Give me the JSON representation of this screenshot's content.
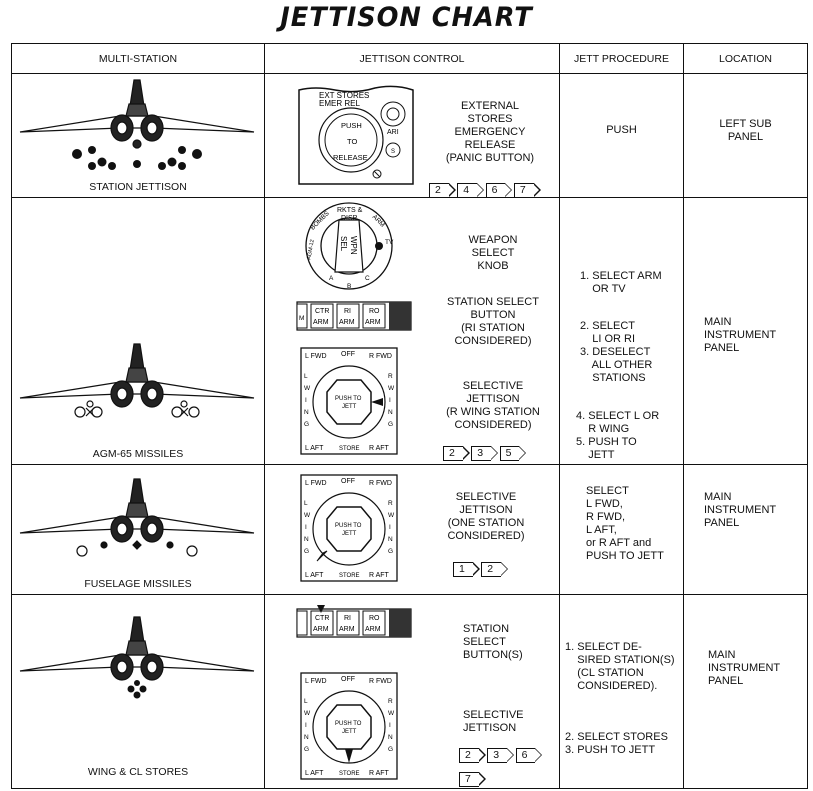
{
  "title": "JETTISON CHART",
  "headers": [
    "MULTI-STATION",
    "JETTISON CONTROL",
    "JETT PROCEDURE",
    "LOCATION"
  ],
  "rows": [
    {
      "caption": "STATION JETTISON",
      "panel_labels": {
        "ext_stores": "EXT STORES",
        "emer_rel": "EMER REL",
        "push": "PUSH",
        "to": "TO",
        "release": "RELEASE",
        "ari": "ARI",
        "s": "S"
      },
      "control_lines": [
        "EXTERNAL",
        "STORES",
        "EMERGENCY",
        "RELEASE",
        "(PANIC BUTTON)"
      ],
      "notes": [
        "2",
        "4",
        "6",
        "7"
      ],
      "procedure": [
        "PUSH"
      ],
      "location": [
        "LEFT SUB",
        "PANEL"
      ]
    },
    {
      "caption": "AGM-65 MISSILES",
      "knob_labels": {
        "rkts": "RKTS &",
        "disp": "DISP",
        "bombs": "BOMBS",
        "arm": "ARM",
        "wpn": "WPN",
        "sel": "SEL",
        "tv": "TV",
        "a": "A",
        "b": "B",
        "c": "C",
        "agm": "AGM-12"
      },
      "control_groups": [
        [
          "WEAPON",
          "SELECT",
          "KNOB"
        ],
        [
          "STATION SELECT",
          "BUTTON",
          "(RI STATION",
          "CONSIDERED)"
        ],
        [
          "SELECTIVE",
          "JETTISON",
          "(R WING STATION",
          "CONSIDERED)"
        ]
      ],
      "notes": [
        "2",
        "3",
        "5"
      ],
      "procedure_groups": [
        [
          "1. SELECT ARM",
          "    OR TV"
        ],
        [
          "2. SELECT",
          "    LI OR RI",
          "3. DESELECT",
          "    ALL OTHER",
          "    STATIONS"
        ],
        [
          "4. SELECT L OR",
          "    R WING",
          "5. PUSH TO",
          "    JETT"
        ]
      ],
      "location": [
        "MAIN",
        "INSTRUMENT",
        "PANEL"
      ]
    },
    {
      "caption": "FUSELAGE MISSILES",
      "control_lines": [
        "SELECTIVE",
        "JETTISON",
        "(ONE STATION",
        "CONSIDERED)"
      ],
      "notes": [
        "1",
        "2"
      ],
      "procedure": [
        "SELECT",
        "L FWD,",
        "R FWD,",
        "L AFT,",
        "or R AFT and",
        "PUSH TO JETT"
      ],
      "location": [
        "MAIN",
        "INSTRUMENT",
        "PANEL"
      ]
    },
    {
      "caption": "WING & CL STORES",
      "control_groups": [
        [
          "STATION",
          "SELECT",
          "BUTTON(S)"
        ],
        [
          "SELECTIVE",
          "JETTISON"
        ]
      ],
      "notes": [
        "2",
        "3",
        "6",
        "7"
      ],
      "procedure_groups": [
        [
          "1. SELECT DE-",
          "    SIRED STATION(S)",
          "    (CL STATION",
          "    CONSIDERED)."
        ],
        [
          "2. SELECT STORES",
          "3. PUSH TO JETT"
        ]
      ],
      "location": [
        "MAIN",
        "INSTRUMENT",
        "PANEL"
      ]
    }
  ],
  "dial_labels": {
    "l_fwd": "L FWD",
    "off": "OFF",
    "r_fwd": "R FWD",
    "l_aft": "L AFT",
    "store": "STORE",
    "r_aft": "R AFT",
    "l_wing": [
      "L",
      "W",
      "I",
      "N",
      "G"
    ],
    "r_wing": [
      "R",
      "W",
      "I",
      "N",
      "G"
    ],
    "push_to": "PUSH TO",
    "jett": "JETT"
  },
  "station_buttons": {
    "ctr": "CTR",
    "ri": "RI",
    "ro": "RO",
    "arm": "ARM",
    "m": "M"
  }
}
